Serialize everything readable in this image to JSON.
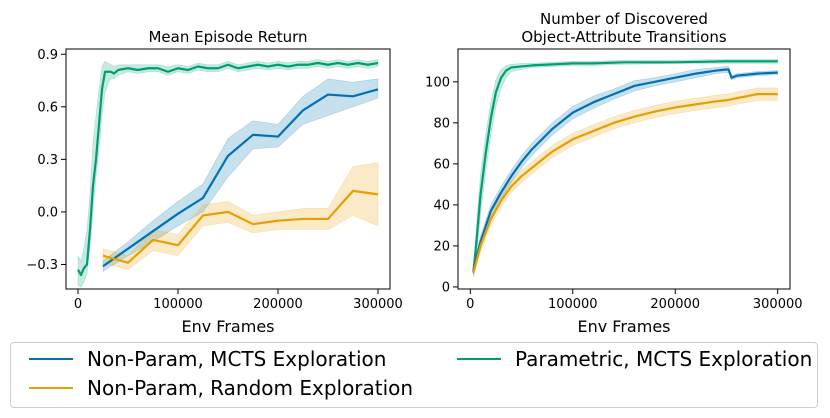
{
  "chart_data": [
    {
      "type": "line",
      "title": "Mean Episode Return",
      "xlabel": "Env Frames",
      "ylabel": "",
      "xlim": [
        -12000,
        312000
      ],
      "ylim": [
        -0.44,
        0.93
      ],
      "xticks": [
        0,
        100000,
        200000,
        300000
      ],
      "xtick_labels": [
        "0",
        "100000",
        "200000",
        "300000"
      ],
      "yticks": [
        -0.3,
        0.0,
        0.3,
        0.6,
        0.9
      ],
      "ytick_labels": [
        "−0.3",
        "0.0",
        "0.3",
        "0.6",
        "0.9"
      ],
      "grid": false,
      "series": [
        {
          "name": "Parametric, MCTS Exploration",
          "color": "#009e73",
          "x": [
            0,
            3000,
            6000,
            9000,
            12000,
            15000,
            18000,
            21000,
            24000,
            27000,
            30000,
            33000,
            36000,
            40000,
            50000,
            60000,
            70000,
            80000,
            90000,
            100000,
            110000,
            120000,
            130000,
            140000,
            150000,
            160000,
            170000,
            180000,
            190000,
            200000,
            210000,
            220000,
            230000,
            240000,
            250000,
            260000,
            270000,
            280000,
            290000,
            300000
          ],
          "y": [
            -0.33,
            -0.36,
            -0.32,
            -0.3,
            -0.1,
            0.15,
            0.3,
            0.5,
            0.7,
            0.8,
            0.8,
            0.8,
            0.79,
            0.81,
            0.82,
            0.81,
            0.82,
            0.82,
            0.8,
            0.82,
            0.81,
            0.83,
            0.82,
            0.82,
            0.84,
            0.82,
            0.83,
            0.84,
            0.83,
            0.84,
            0.83,
            0.84,
            0.84,
            0.85,
            0.84,
            0.85,
            0.84,
            0.85,
            0.84,
            0.85
          ],
          "lower": [
            -0.42,
            -0.43,
            -0.4,
            -0.35,
            -0.2,
            0.0,
            0.2,
            0.35,
            0.55,
            0.68,
            0.73,
            0.76,
            0.76,
            0.78,
            0.8,
            0.79,
            0.8,
            0.8,
            0.78,
            0.8,
            0.79,
            0.81,
            0.8,
            0.8,
            0.82,
            0.8,
            0.81,
            0.82,
            0.81,
            0.82,
            0.81,
            0.82,
            0.82,
            0.83,
            0.82,
            0.83,
            0.82,
            0.83,
            0.82,
            0.83
          ],
          "upper": [
            -0.25,
            -0.28,
            -0.2,
            -0.1,
            0.1,
            0.4,
            0.55,
            0.7,
            0.83,
            0.86,
            0.85,
            0.84,
            0.83,
            0.84,
            0.84,
            0.84,
            0.84,
            0.84,
            0.83,
            0.84,
            0.83,
            0.85,
            0.84,
            0.84,
            0.86,
            0.84,
            0.85,
            0.86,
            0.85,
            0.86,
            0.85,
            0.86,
            0.86,
            0.87,
            0.86,
            0.87,
            0.86,
            0.87,
            0.86,
            0.87
          ]
        },
        {
          "name": "Non-Param, MCTS Exploration",
          "color": "#0072b2",
          "x": [
            25000,
            50000,
            75000,
            100000,
            125000,
            150000,
            175000,
            200000,
            225000,
            250000,
            275000,
            300000
          ],
          "y": [
            -0.31,
            -0.21,
            -0.11,
            -0.01,
            0.08,
            0.32,
            0.44,
            0.43,
            0.58,
            0.67,
            0.66,
            0.7
          ],
          "lower": [
            -0.34,
            -0.25,
            -0.17,
            -0.08,
            0.0,
            0.2,
            0.36,
            0.37,
            0.5,
            0.55,
            0.6,
            0.65
          ],
          "upper": [
            -0.28,
            -0.17,
            -0.05,
            0.06,
            0.16,
            0.42,
            0.52,
            0.5,
            0.66,
            0.76,
            0.74,
            0.76
          ]
        },
        {
          "name": "Non-Param, Random Exploration",
          "color": "#e69f00",
          "x": [
            25000,
            50000,
            75000,
            100000,
            125000,
            150000,
            175000,
            200000,
            225000,
            250000,
            275000,
            300000
          ],
          "y": [
            -0.25,
            -0.29,
            -0.16,
            -0.19,
            -0.02,
            0.0,
            -0.07,
            -0.05,
            -0.04,
            -0.04,
            0.12,
            0.1
          ],
          "lower": [
            -0.29,
            -0.33,
            -0.22,
            -0.25,
            -0.08,
            -0.06,
            -0.12,
            -0.1,
            -0.1,
            -0.1,
            -0.02,
            -0.08
          ],
          "upper": [
            -0.21,
            -0.25,
            -0.1,
            -0.13,
            0.04,
            0.06,
            -0.02,
            0.0,
            0.02,
            0.02,
            0.26,
            0.28
          ]
        }
      ]
    },
    {
      "type": "line",
      "title": "Number of Discovered\nObject-Attribute Transitions",
      "xlabel": "Env Frames",
      "ylabel": "",
      "xlim": [
        -12000,
        312000
      ],
      "ylim": [
        -1,
        116
      ],
      "xticks": [
        0,
        100000,
        200000,
        300000
      ],
      "xtick_labels": [
        "0",
        "100000",
        "200000",
        "300000"
      ],
      "yticks": [
        0,
        20,
        40,
        60,
        80,
        100
      ],
      "ytick_labels": [
        "0",
        "20",
        "40",
        "60",
        "80",
        "100"
      ],
      "grid": false,
      "series": [
        {
          "name": "Parametric, MCTS Exploration",
          "color": "#009e73",
          "x": [
            3000,
            6000,
            10000,
            15000,
            20000,
            25000,
            30000,
            35000,
            40000,
            50000,
            60000,
            80000,
            100000,
            120000,
            150000,
            200000,
            250000,
            300000
          ],
          "y": [
            7,
            22,
            45,
            65,
            82,
            95,
            102,
            105.5,
            107,
            107.5,
            108,
            108.5,
            109,
            109,
            109.5,
            109.5,
            110,
            110
          ],
          "lower": [
            5,
            14,
            35,
            56,
            74,
            88,
            97,
            102,
            105,
            106,
            107,
            107.5,
            108,
            108,
            108.5,
            109,
            109,
            109
          ],
          "upper": [
            9,
            30,
            55,
            74,
            90,
            101,
            106,
            108,
            108.5,
            109,
            109,
            109.5,
            110,
            110,
            110.5,
            110.5,
            111,
            111
          ]
        },
        {
          "name": "Non-Param, MCTS Exploration",
          "color": "#0072b2",
          "x": [
            3000,
            10000,
            20000,
            30000,
            40000,
            50000,
            60000,
            70000,
            80000,
            90000,
            100000,
            120000,
            140000,
            160000,
            180000,
            200000,
            220000,
            240000,
            250000,
            252000,
            255000,
            260000,
            280000,
            300000
          ],
          "y": [
            8,
            22,
            37,
            46,
            54,
            61,
            67,
            72,
            77,
            81,
            85,
            90,
            94,
            98,
            100,
            102,
            104,
            105.5,
            106,
            106,
            102,
            103,
            104,
            104.5
          ],
          "lower": [
            6,
            19,
            34,
            43,
            51,
            58,
            64,
            69,
            74,
            78,
            82,
            87,
            91.5,
            95.5,
            98,
            100,
            102,
            104,
            104.5,
            104.5,
            101,
            102,
            103,
            103.5
          ],
          "upper": [
            10,
            25,
            40,
            49,
            57,
            64,
            70,
            75,
            80,
            84,
            88,
            93,
            96.5,
            100.5,
            102,
            104,
            106,
            107,
            107.5,
            107.5,
            103,
            104,
            105,
            105.5
          ]
        },
        {
          "name": "Non-Param, Random Exploration",
          "color": "#e69f00",
          "x": [
            3000,
            10000,
            20000,
            30000,
            40000,
            50000,
            60000,
            70000,
            80000,
            90000,
            100000,
            120000,
            140000,
            160000,
            180000,
            200000,
            220000,
            240000,
            250000,
            260000,
            270000,
            280000,
            300000
          ],
          "y": [
            7,
            20,
            33,
            42,
            49,
            54,
            58,
            62,
            66,
            69,
            72,
            76,
            80,
            83,
            85.5,
            87.5,
            89,
            90.5,
            91,
            92,
            93,
            94,
            94
          ],
          "lower": [
            5,
            17,
            30,
            39,
            46,
            51,
            55,
            59,
            63,
            66,
            69,
            73,
            77,
            80,
            82.5,
            84.5,
            86,
            87.5,
            88,
            89,
            90,
            91,
            91
          ],
          "upper": [
            9,
            23,
            36,
            45,
            52,
            57,
            61,
            65,
            69,
            72,
            75,
            79,
            83,
            86,
            88.5,
            90.5,
            92,
            93.5,
            94,
            95,
            96,
            97,
            97
          ]
        }
      ]
    }
  ],
  "legend": {
    "placement": "bottom",
    "items": [
      {
        "label": "Non-Param, MCTS Exploration",
        "color": "#0072b2"
      },
      {
        "label": "Non-Param, Random Exploration",
        "color": "#e69f00"
      },
      {
        "label": "Parametric, MCTS Exploration",
        "color": "#009e73"
      }
    ]
  }
}
